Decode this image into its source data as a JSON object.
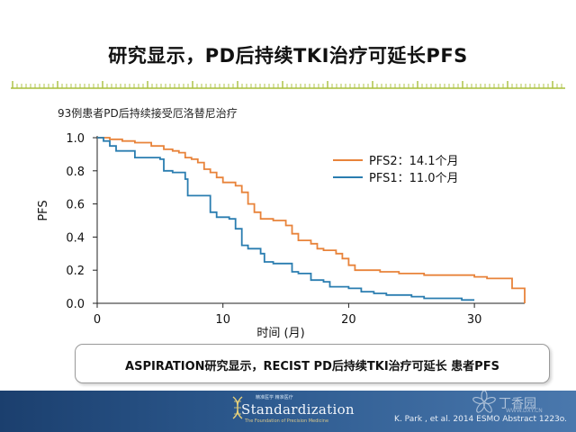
{
  "slide": {
    "title": "研究显示，PD后持续TKI治疗可延长PFS",
    "caption": "ASPIRATION研究显示，RECIST PD后持续TKI治疗可延长 患者PFS",
    "reference": "K. Park , et al. 2014 ESMO Abstract 1223o.",
    "colors": {
      "ruler": "#a8bf3a",
      "footer": "#244d80",
      "pfs2": "#e8833a",
      "pfs1": "#2a7db0"
    }
  },
  "logo": {
    "small_text": "精准医学  精准医疗",
    "wordmark": "Standardization",
    "subtext": "The Foundation of Precision Medicine",
    "icon": "dna-helix-icon"
  },
  "watermark": {
    "text": "丁香园",
    "url": "WWW.DXY.CN",
    "icon": "flower-icon"
  },
  "chart_data": {
    "type": "line",
    "subtitle": "93例患者PD后持续接受厄洛替尼治疗",
    "xlabel": "时间 (月)",
    "ylabel": "PFS",
    "xlim": [
      0,
      34
    ],
    "ylim": [
      0,
      1.0
    ],
    "x_ticks": [
      "0",
      "10",
      "20",
      "30"
    ],
    "y_ticks": [
      "0.0",
      "0.2",
      "0.4",
      "0.6",
      "0.8",
      "1.0"
    ],
    "legend_position": "top-right",
    "step": true,
    "series": [
      {
        "name": "PFS2：14.1个月",
        "color": "#e8833a",
        "points": [
          [
            0,
            1.0
          ],
          [
            1,
            0.99
          ],
          [
            2,
            0.98
          ],
          [
            3,
            0.97
          ],
          [
            4,
            0.97
          ],
          [
            4.3,
            0.95
          ],
          [
            5,
            0.95
          ],
          [
            5.3,
            0.93
          ],
          [
            6,
            0.92
          ],
          [
            6.5,
            0.91
          ],
          [
            7,
            0.88
          ],
          [
            7.5,
            0.87
          ],
          [
            8,
            0.85
          ],
          [
            8.5,
            0.81
          ],
          [
            9,
            0.79
          ],
          [
            9.5,
            0.76
          ],
          [
            10,
            0.73
          ],
          [
            11,
            0.71
          ],
          [
            11.5,
            0.67
          ],
          [
            12,
            0.6
          ],
          [
            12.5,
            0.55
          ],
          [
            13,
            0.51
          ],
          [
            14,
            0.5
          ],
          [
            15,
            0.47
          ],
          [
            15.5,
            0.42
          ],
          [
            16,
            0.38
          ],
          [
            17,
            0.36
          ],
          [
            17.5,
            0.33
          ],
          [
            18,
            0.32
          ],
          [
            19,
            0.3
          ],
          [
            19.5,
            0.27
          ],
          [
            20,
            0.23
          ],
          [
            20.5,
            0.2
          ],
          [
            22,
            0.2
          ],
          [
            22.5,
            0.19
          ],
          [
            24,
            0.18
          ],
          [
            26,
            0.17
          ],
          [
            30,
            0.16
          ],
          [
            31,
            0.15
          ],
          [
            32,
            0.15
          ],
          [
            33,
            0.09
          ],
          [
            34,
            0.08
          ],
          [
            34,
            0.0
          ]
        ]
      },
      {
        "name": "PFS1：11.0个月",
        "color": "#2a7db0",
        "points": [
          [
            0,
            1.0
          ],
          [
            0.5,
            0.98
          ],
          [
            1,
            0.95
          ],
          [
            1.5,
            0.92
          ],
          [
            3,
            0.88
          ],
          [
            5,
            0.87
          ],
          [
            5.3,
            0.8
          ],
          [
            6,
            0.79
          ],
          [
            7,
            0.75
          ],
          [
            7.2,
            0.65
          ],
          [
            8.5,
            0.65
          ],
          [
            9,
            0.55
          ],
          [
            9.5,
            0.52
          ],
          [
            10.5,
            0.51
          ],
          [
            11,
            0.45
          ],
          [
            11.5,
            0.35
          ],
          [
            12,
            0.33
          ],
          [
            13,
            0.3
          ],
          [
            13.3,
            0.25
          ],
          [
            14,
            0.24
          ],
          [
            15,
            0.24
          ],
          [
            15.5,
            0.19
          ],
          [
            16,
            0.18
          ],
          [
            17,
            0.14
          ],
          [
            18,
            0.13
          ],
          [
            18.5,
            0.1
          ],
          [
            20,
            0.09
          ],
          [
            21,
            0.07
          ],
          [
            22,
            0.06
          ],
          [
            23,
            0.05
          ],
          [
            25,
            0.04
          ],
          [
            26,
            0.03
          ],
          [
            28,
            0.03
          ],
          [
            29,
            0.02
          ],
          [
            30,
            0.02
          ]
        ]
      }
    ]
  }
}
